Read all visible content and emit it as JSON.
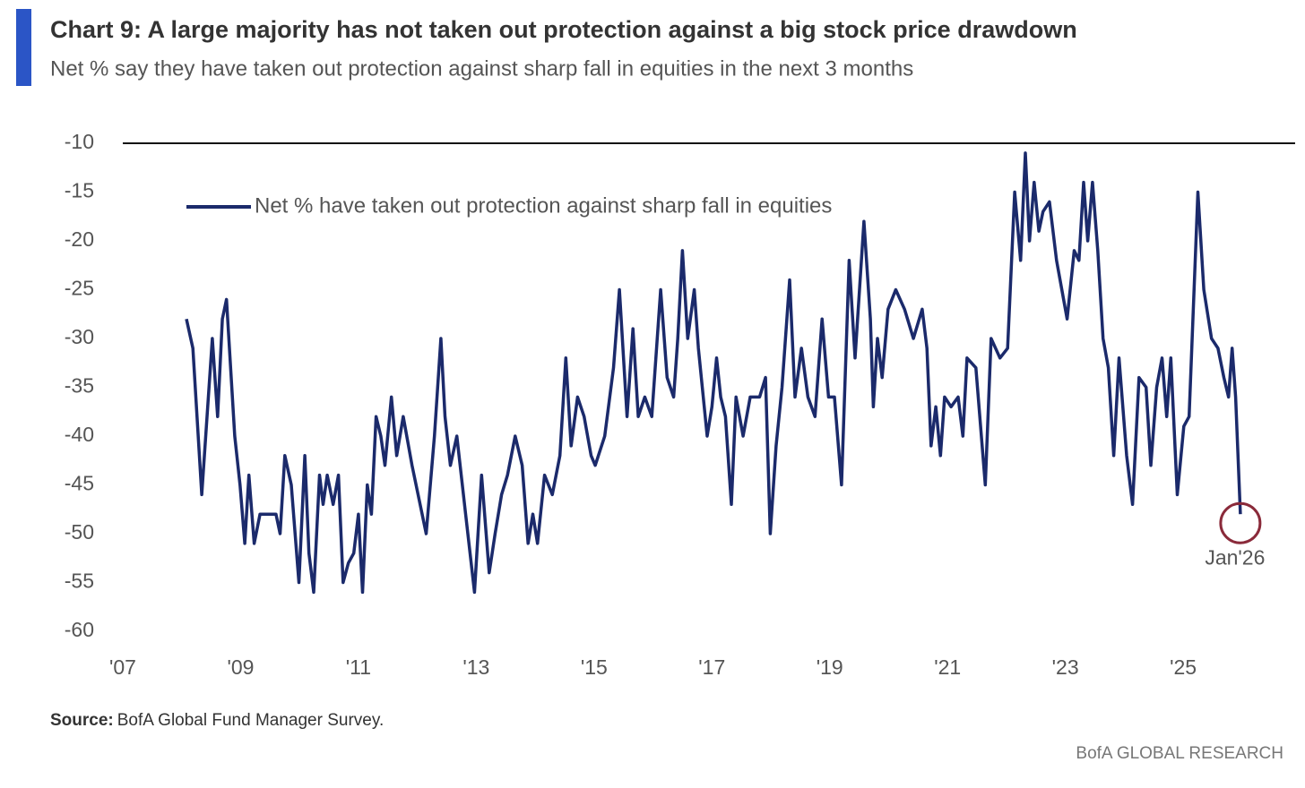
{
  "chart_data": {
    "type": "line",
    "title": "Chart 9: A large majority has not taken out protection against a big stock price drawdown",
    "subtitle": "Net % say they have taken out protection against sharp fall in equities in the next 3 months",
    "x": [
      2008.08,
      2008.19,
      2008.34,
      2008.52,
      2008.61,
      2008.69,
      2008.76,
      2008.9,
      2008.99,
      2009.07,
      2009.14,
      2009.23,
      2009.33,
      2009.48,
      2009.6,
      2009.67,
      2009.75,
      2009.86,
      2009.99,
      2010.09,
      2010.16,
      2010.24,
      2010.34,
      2010.4,
      2010.47,
      2010.57,
      2010.66,
      2010.74,
      2010.83,
      2010.92,
      2011.0,
      2011.07,
      2011.15,
      2011.22,
      2011.3,
      2011.38,
      2011.45,
      2011.56,
      2011.65,
      2011.76,
      2011.91,
      2012.15,
      2012.29,
      2012.4,
      2012.47,
      2012.56,
      2012.67,
      2012.82,
      2012.97,
      2013.09,
      2013.22,
      2013.32,
      2013.43,
      2013.53,
      2013.66,
      2013.78,
      2013.88,
      2013.96,
      2014.04,
      2014.16,
      2014.29,
      2014.42,
      2014.52,
      2014.61,
      2014.72,
      2014.83,
      2014.95,
      2015.02,
      2015.18,
      2015.33,
      2015.43,
      2015.56,
      2015.66,
      2015.75,
      2015.86,
      2015.98,
      2016.13,
      2016.24,
      2016.35,
      2016.42,
      2016.5,
      2016.59,
      2016.7,
      2016.77,
      2016.92,
      2017.0,
      2017.08,
      2017.15,
      2017.23,
      2017.33,
      2017.41,
      2017.53,
      2017.65,
      2017.81,
      2017.91,
      2017.99,
      2018.09,
      2018.19,
      2018.32,
      2018.41,
      2018.52,
      2018.63,
      2018.75,
      2018.87,
      2018.98,
      2019.08,
      2019.2,
      2019.33,
      2019.43,
      2019.58,
      2019.69,
      2019.74,
      2019.81,
      2019.89,
      2019.99,
      2020.12,
      2020.27,
      2020.42,
      2020.57,
      2020.65,
      2020.72,
      2020.8,
      2020.88,
      2020.95,
      2021.06,
      2021.18,
      2021.26,
      2021.33,
      2021.48,
      2021.64,
      2021.74,
      2021.89,
      2022.02,
      2022.14,
      2022.24,
      2022.32,
      2022.39,
      2022.47,
      2022.55,
      2022.62,
      2022.73,
      2022.85,
      2023.03,
      2023.15,
      2023.23,
      2023.31,
      2023.38,
      2023.46,
      2023.55,
      2023.64,
      2023.73,
      2023.82,
      2023.91,
      2024.04,
      2024.14,
      2024.25,
      2024.37,
      2024.45,
      2024.55,
      2024.64,
      2024.72,
      2024.79,
      2024.9,
      2025.01,
      2025.1,
      2025.25,
      2025.35,
      2025.48,
      2025.59,
      2025.69,
      2025.77,
      2025.83,
      2025.89,
      2025.97
    ],
    "series": [
      {
        "name": "Net % have taken out protection against sharp fall in equities",
        "color": "#1b2a6b",
        "values": [
          -28,
          -31,
          -46,
          -30,
          -38,
          -28,
          -26,
          -40,
          -45,
          -51,
          -44,
          -51,
          -48,
          -48,
          -48,
          -50,
          -42,
          -45,
          -55,
          -42,
          -52,
          -56,
          -44,
          -47,
          -44,
          -47,
          -44,
          -55,
          -53,
          -52,
          -48,
          -56,
          -45,
          -48,
          -38,
          -40,
          -43,
          -36,
          -42,
          -38,
          -43,
          -50,
          -40,
          -30,
          -38,
          -43,
          -40,
          -48,
          -56,
          -44,
          -54,
          -50,
          -46,
          -44,
          -40,
          -43,
          -51,
          -48,
          -51,
          -44,
          -46,
          -42,
          -32,
          -41,
          -36,
          -38,
          -42,
          -43,
          -40,
          -33,
          -25,
          -38,
          -29,
          -38,
          -36,
          -38,
          -25,
          -34,
          -36,
          -30,
          -21,
          -30,
          -25,
          -31,
          -40,
          -37,
          -32,
          -36,
          -38,
          -47,
          -36,
          -40,
          -36,
          -36,
          -34,
          -50,
          -41,
          -35,
          -24,
          -36,
          -31,
          -36,
          -38,
          -28,
          -36,
          -36,
          -45,
          -22,
          -32,
          -18,
          -28,
          -37,
          -30,
          -34,
          -27,
          -25,
          -27,
          -30,
          -27,
          -31,
          -41,
          -37,
          -42,
          -36,
          -37,
          -36,
          -40,
          -32,
          -33,
          -45,
          -30,
          -32,
          -31,
          -15,
          -22,
          -11,
          -20,
          -14,
          -19,
          -17,
          -16,
          -22,
          -28,
          -21,
          -22,
          -14,
          -20,
          -14,
          -21,
          -30,
          -33,
          -42,
          -32,
          -42,
          -47,
          -34,
          -35,
          -43,
          -35,
          -32,
          -38,
          -32,
          -46,
          -39,
          -38,
          -15,
          -25,
          -30,
          -31,
          -34,
          -36,
          -31,
          -36,
          -48
        ]
      }
    ],
    "xlim": [
      2007,
      2026.9
    ],
    "xticks": [
      {
        "value": 2007,
        "label": "'07"
      },
      {
        "value": 2009,
        "label": "'09"
      },
      {
        "value": 2011,
        "label": "'11"
      },
      {
        "value": 2013,
        "label": "'13"
      },
      {
        "value": 2015,
        "label": "'15"
      },
      {
        "value": 2017,
        "label": "'17"
      },
      {
        "value": 2019,
        "label": "'19"
      },
      {
        "value": 2021,
        "label": "'21"
      },
      {
        "value": 2023,
        "label": "'23"
      },
      {
        "value": 2025,
        "label": "'25"
      }
    ],
    "ylim": [
      -60,
      -10
    ],
    "yticks": [
      -10,
      -15,
      -20,
      -25,
      -30,
      -35,
      -40,
      -45,
      -50,
      -55,
      -60
    ],
    "annotation": "Jan'26",
    "source_label": "Source:",
    "source_text": "BofA Global Fund Manager Survey.",
    "brand": "BofA GLOBAL RESEARCH"
  }
}
